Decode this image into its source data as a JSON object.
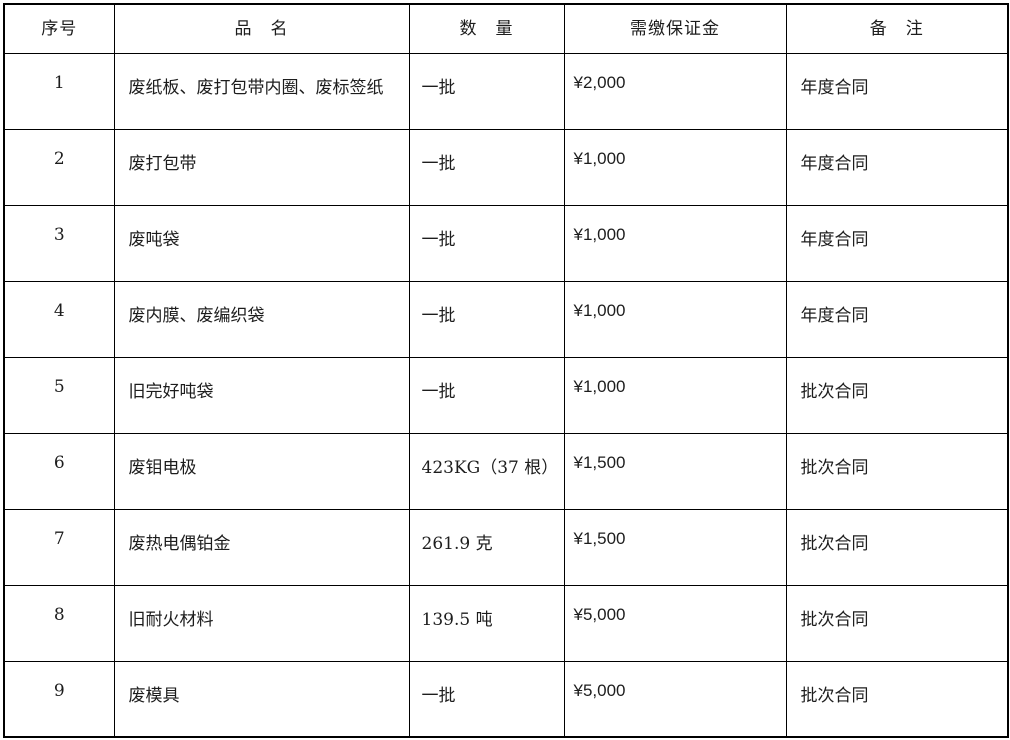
{
  "table": {
    "headers": {
      "index": "序号",
      "name": "品　名",
      "qty": "数　量",
      "deposit": "需缴保证金",
      "note": "备　注"
    },
    "rows": [
      {
        "index": "1",
        "name": "废纸板、废打包带内圈、废标签纸",
        "qty": "一批",
        "deposit": "¥2,000",
        "note": "年度合同"
      },
      {
        "index": "2",
        "name": "废打包带",
        "qty": "一批",
        "deposit": "¥1,000",
        "note": "年度合同"
      },
      {
        "index": "3",
        "name": "废吨袋",
        "qty": "一批",
        "deposit": "¥1,000",
        "note": "年度合同"
      },
      {
        "index": "4",
        "name": "废内膜、废编织袋",
        "qty": "一批",
        "deposit": "¥1,000",
        "note": "年度合同"
      },
      {
        "index": "5",
        "name": "旧完好吨袋",
        "qty": "一批",
        "deposit": "¥1,000",
        "note": "批次合同"
      },
      {
        "index": "6",
        "name": "废钼电极",
        "qty": "423KG（37 根）",
        "deposit": "¥1,500",
        "note": "批次合同"
      },
      {
        "index": "7",
        "name": "废热电偶铂金",
        "qty": "261.9 克",
        "deposit": "¥1,500",
        "note": "批次合同"
      },
      {
        "index": "8",
        "name": "旧耐火材料",
        "qty": "139.5 吨",
        "deposit": "¥5,000",
        "note": "批次合同"
      },
      {
        "index": "9",
        "name": "废模具",
        "qty": "一批",
        "deposit": "¥5,000",
        "note": "批次合同"
      }
    ]
  },
  "colors": {
    "border": "#000000",
    "text": "#1d1d1d",
    "amount_text": "#3b3b3b",
    "background": "#ffffff"
  }
}
